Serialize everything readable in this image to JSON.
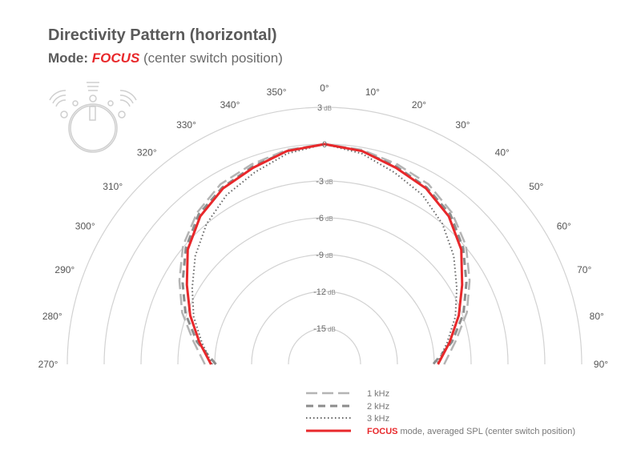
{
  "title": "Directivity Pattern (horizontal)",
  "subtitle": {
    "prefix": "Mode:",
    "mode": "FOCUS",
    "suffix": "(center switch position)"
  },
  "chart_data": {
    "type": "polar-line",
    "title": "Directivity Pattern (horizontal)",
    "angle_labels": [
      "270°",
      "280°",
      "290°",
      "300°",
      "310°",
      "320°",
      "330°",
      "340°",
      "350°",
      "0°",
      "10°",
      "20°",
      "30°",
      "40°",
      "50°",
      "60°",
      "70°",
      "80°",
      "90°"
    ],
    "angles": [
      -90,
      -80,
      -70,
      -60,
      -50,
      -40,
      -30,
      -20,
      -10,
      0,
      10,
      20,
      30,
      40,
      50,
      60,
      70,
      80,
      90
    ],
    "radial_ticks": [
      3,
      0,
      -3,
      -6,
      -9,
      -12,
      -15
    ],
    "radial_tick_labels": [
      "3",
      "0",
      "-3",
      "-6",
      "-9",
      "-12",
      "-15"
    ],
    "radial_unit": "dB",
    "rlim": [
      -16,
      3
    ],
    "series": [
      {
        "name": "1 kHz",
        "style": "long-dash",
        "color": "#b4b4b4",
        "values": [
          -8.2,
          -7.1,
          -5.6,
          -4.3,
          -2.9,
          -1.8,
          -1.0,
          -0.6,
          -0.2,
          0,
          -0.2,
          -0.6,
          -1.0,
          -1.8,
          -2.9,
          -4.3,
          -5.6,
          -7.1,
          -8.2
        ]
      },
      {
        "name": "2 kHz",
        "style": "dash",
        "color": "#8c8c8c",
        "values": [
          -9.1,
          -7.4,
          -5.9,
          -4.6,
          -3.2,
          -2.0,
          -1.3,
          -0.8,
          -0.3,
          0,
          -0.3,
          -0.8,
          -1.3,
          -2.0,
          -3.2,
          -4.6,
          -5.9,
          -7.4,
          -9.1
        ]
      },
      {
        "name": "3 kHz",
        "style": "dotted",
        "color": "#666666",
        "values": [
          -8.8,
          -7.8,
          -6.6,
          -5.5,
          -4.2,
          -3.0,
          -2.0,
          -1.3,
          -0.5,
          0,
          -0.5,
          -1.3,
          -2.0,
          -3.0,
          -4.2,
          -5.5,
          -6.6,
          -7.8,
          -8.8
        ]
      },
      {
        "name": "FOCUS mode, averaged SPL (center switch position)",
        "style": "solid",
        "color": "#e8282b",
        "values": [
          -8.7,
          -7.6,
          -6.3,
          -5.0,
          -3.4,
          -2.2,
          -1.4,
          -0.9,
          -0.3,
          0,
          -0.3,
          -0.9,
          -1.4,
          -2.2,
          -3.4,
          -5.0,
          -6.3,
          -7.6,
          -8.7
        ]
      }
    ],
    "legend": {
      "placement": "bottom-right",
      "items": [
        "1 kHz",
        "2 kHz",
        "3 kHz"
      ],
      "focus_label": "FOCUS",
      "focus_suffix": "mode, averaged SPL (center switch position)"
    }
  }
}
